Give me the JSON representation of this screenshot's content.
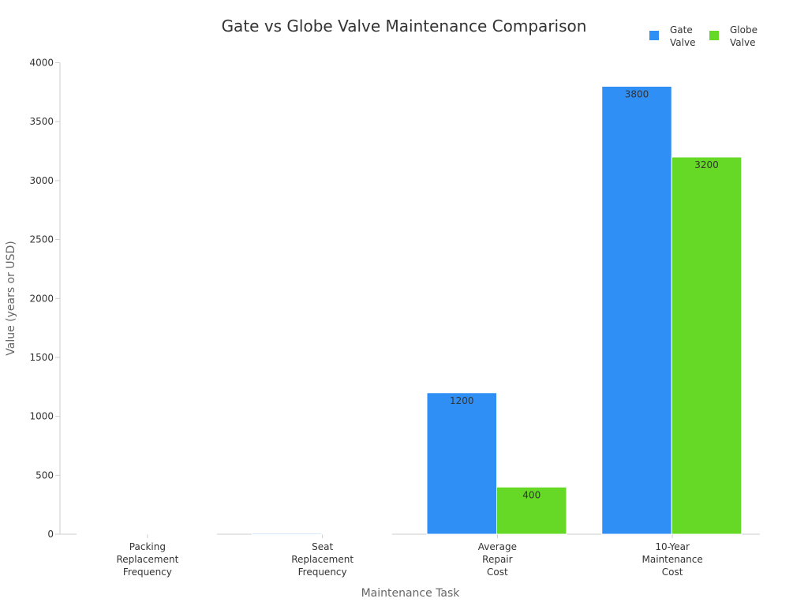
{
  "chart_data": {
    "type": "bar",
    "title": "Gate vs Globe Valve Maintenance Comparison",
    "xlabel": "Maintenance Task",
    "ylabel": "Value (years or USD)",
    "ylim": [
      0,
      4000
    ],
    "yticks": [
      0,
      500,
      1000,
      1500,
      2000,
      2500,
      3000,
      3500,
      4000
    ],
    "categories": [
      "Packing Replacement Frequency",
      "Seat Replacement Frequency",
      "Average Repair Cost",
      "10-Year Maintenance Cost"
    ],
    "category_lines": [
      [
        "Packing",
        "Replacement",
        "Frequency"
      ],
      [
        "Seat",
        "Replacement",
        "Frequency"
      ],
      [
        "Average",
        "Repair",
        "Cost"
      ],
      [
        "10-Year",
        "Maintenance",
        "Cost"
      ]
    ],
    "series": [
      {
        "name": "Gate Valve",
        "name_lines": [
          "Gate",
          "Valve"
        ],
        "color": "#2f8ff5",
        "values": [
          2,
          8,
          1200,
          3800
        ],
        "labels": [
          "",
          "",
          "1200",
          "3800"
        ]
      },
      {
        "name": "Globe Valve",
        "name_lines": [
          "Globe",
          "Valve"
        ],
        "color": "#66d926",
        "values": [
          1.5,
          5,
          400,
          3200
        ],
        "labels": [
          "",
          "",
          "400",
          "3200"
        ]
      }
    ],
    "legend_position": "top-right",
    "grid": false
  }
}
